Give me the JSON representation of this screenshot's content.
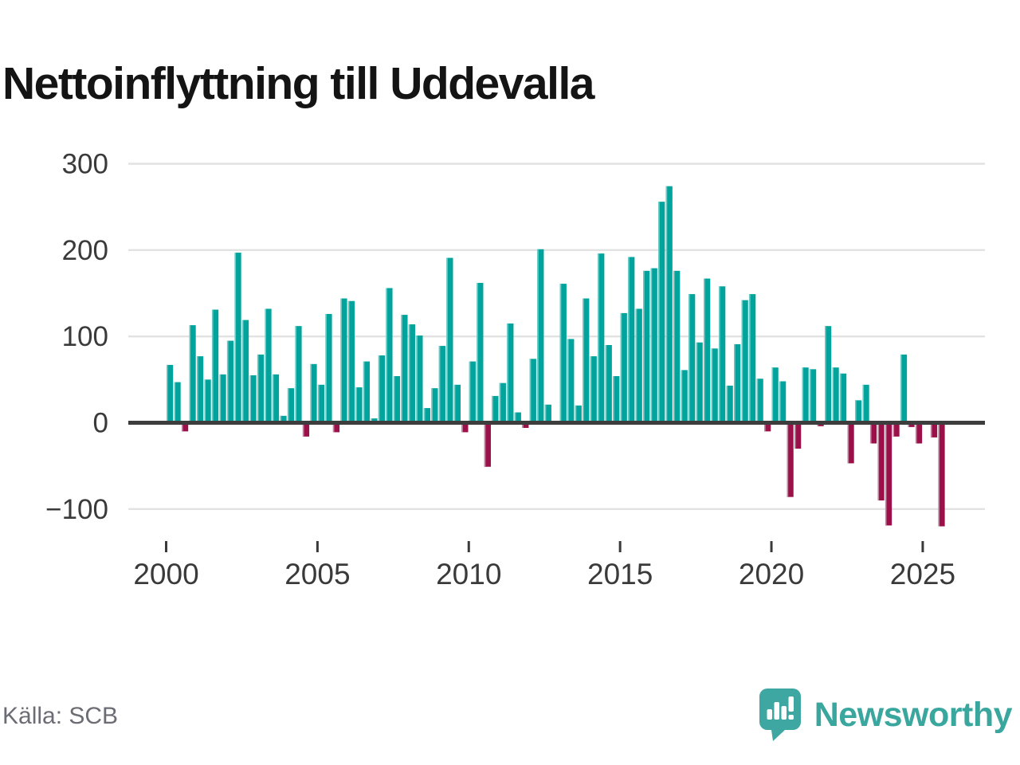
{
  "page": {
    "title": "Nettoinflyttning till Uddevalla",
    "source": "Källa: SCB",
    "brand": "Newsworthy"
  },
  "colors": {
    "positive": "#00a49c",
    "negative": "#9b1048",
    "positive_edge": "#73c8c3",
    "negative_edge": "#c287a0",
    "axis": "#3d3d3d",
    "grid": "#e2e2e2",
    "tick_label": "#3a3a3a",
    "title_text": "#141414",
    "source_text": "#6c6c75",
    "brand_color": "#3aa79f",
    "background": "#ffffff"
  },
  "chart_data": {
    "type": "bar",
    "title": "Nettoinflyttning till Uddevalla",
    "x_start_year": 2000,
    "periods_per_year": 4,
    "x_ticks": [
      2000,
      2005,
      2010,
      2015,
      2020,
      2025
    ],
    "y_ticks": [
      300,
      200,
      100,
      0,
      -100
    ],
    "ylim": [
      -130,
      300
    ],
    "grid": true,
    "legend": false,
    "values": [
      67,
      47,
      -10,
      113,
      77,
      50,
      131,
      56,
      95,
      197,
      119,
      55,
      79,
      132,
      56,
      8,
      40,
      112,
      -16,
      68,
      44,
      126,
      -11,
      144,
      141,
      41,
      71,
      5,
      78,
      156,
      54,
      125,
      114,
      101,
      17,
      40,
      89,
      191,
      44,
      -11,
      71,
      162,
      -51,
      31,
      46,
      115,
      12,
      -6,
      74,
      201,
      21,
      0,
      161,
      97,
      20,
      144,
      77,
      196,
      90,
      54,
      127,
      192,
      132,
      176,
      179,
      256,
      274,
      176,
      61,
      149,
      93,
      167,
      86,
      158,
      43,
      91,
      142,
      149,
      51,
      -10,
      64,
      48,
      -86,
      -30,
      64,
      62,
      -4,
      112,
      64,
      57,
      -47,
      26,
      44,
      -24,
      -90,
      -119,
      -16,
      79,
      -5,
      -24,
      0,
      -17,
      -120
    ]
  }
}
